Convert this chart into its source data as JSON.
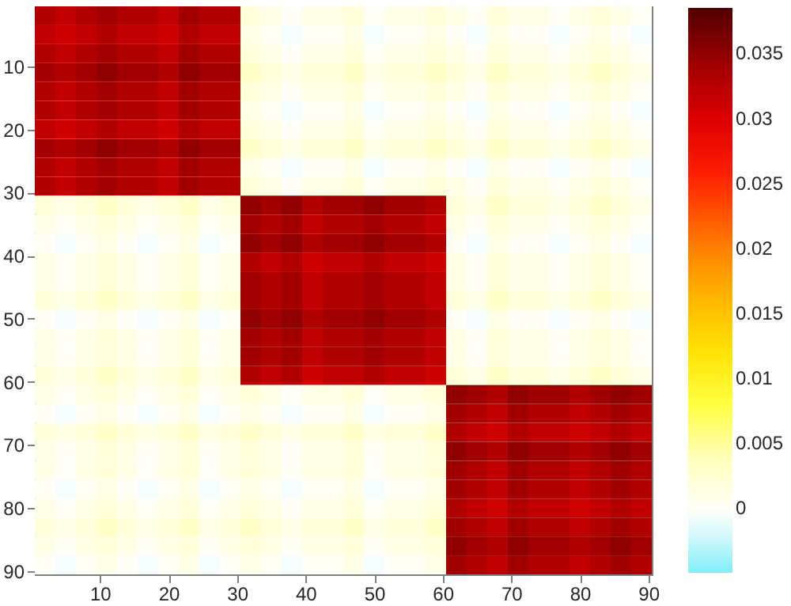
{
  "chart_data": {
    "type": "heatmap",
    "x": [
      2,
      5,
      8,
      11,
      14,
      17,
      20,
      23,
      26,
      29,
      32,
      35,
      38,
      41,
      44,
      47,
      50,
      53,
      56,
      59,
      62,
      65,
      68,
      71,
      74,
      77,
      80,
      83,
      86,
      89
    ],
    "xlim": [
      0.5,
      90.5
    ],
    "ylim": [
      90.5,
      0.5
    ],
    "xticks": [
      10,
      20,
      30,
      40,
      50,
      60,
      70,
      80,
      90
    ],
    "yticks": [
      10,
      20,
      30,
      40,
      50,
      60,
      70,
      80,
      90
    ],
    "clim": [
      -0.005,
      0.0385
    ],
    "cticks": [
      0,
      0.005,
      0.01,
      0.015,
      0.02,
      0.025,
      0.03,
      0.035
    ],
    "colors": [
      "#80eef8",
      "#ffffff",
      "#ffffc0",
      "#ffff40",
      "#ffe000",
      "#ffb000",
      "#ff7000",
      "#ff2000",
      "#e00000",
      "#a00000",
      "#500000"
    ],
    "cells": [
      [
        0.033,
        0.032,
        0.033,
        0.034,
        0.033,
        0.033,
        0.032,
        0.034,
        0.033,
        0.033,
        0.002,
        0.001,
        0,
        0.001,
        0.001,
        0.002,
        0,
        0.001,
        0.001,
        0.002,
        0.001,
        0,
        0.002,
        0.001,
        0.001,
        0,
        0.001,
        0.002,
        0.001,
        0
      ],
      [
        0.032,
        0.031,
        0.032,
        0.033,
        0.032,
        0.032,
        0.031,
        0.033,
        0.032,
        0.032,
        0.001,
        0,
        -0.001,
        0,
        0,
        0.001,
        -0.001,
        0,
        0,
        0.001,
        0,
        -0.001,
        0.001,
        0,
        0,
        -0.001,
        0,
        0.001,
        0,
        -0.001
      ],
      [
        0.033,
        0.032,
        0.033,
        0.034,
        0.033,
        0.033,
        0.032,
        0.034,
        0.033,
        0.033,
        0.002,
        0.001,
        0,
        0.001,
        0.001,
        0.002,
        0,
        0.001,
        0.001,
        0.002,
        0.001,
        0,
        0.002,
        0.001,
        0.001,
        0,
        0.001,
        0.002,
        0.001,
        0
      ],
      [
        0.034,
        0.033,
        0.034,
        0.035,
        0.034,
        0.034,
        0.033,
        0.035,
        0.034,
        0.034,
        0.003,
        0.002,
        0.001,
        0.002,
        0.002,
        0.003,
        0.001,
        0.002,
        0.002,
        0.003,
        0.002,
        0.001,
        0.003,
        0.002,
        0.002,
        0.001,
        0.002,
        0.003,
        0.002,
        0.001
      ],
      [
        0.033,
        0.032,
        0.033,
        0.034,
        0.033,
        0.033,
        0.032,
        0.034,
        0.033,
        0.033,
        0.002,
        0.001,
        0,
        0.001,
        0.001,
        0.002,
        0,
        0.001,
        0.001,
        0.002,
        0.001,
        0,
        0.002,
        0.001,
        0.001,
        0,
        0.001,
        0.002,
        0.001,
        0
      ],
      [
        0.033,
        0.032,
        0.033,
        0.034,
        0.033,
        0.033,
        0.032,
        0.034,
        0.033,
        0.033,
        0.001,
        0,
        -0.001,
        0,
        0,
        0.001,
        -0.001,
        0,
        0,
        0.001,
        0,
        -0.001,
        0.001,
        0,
        0,
        -0.001,
        0,
        0.001,
        0,
        -0.001
      ],
      [
        0.032,
        0.031,
        0.032,
        0.033,
        0.032,
        0.032,
        0.031,
        0.033,
        0.032,
        0.032,
        0.002,
        0.001,
        0,
        0.001,
        0.001,
        0.002,
        0,
        0.001,
        0.001,
        0.002,
        0.001,
        0,
        0.002,
        0.001,
        0.001,
        0,
        0.001,
        0.002,
        0.001,
        0
      ],
      [
        0.034,
        0.033,
        0.034,
        0.035,
        0.034,
        0.034,
        0.033,
        0.035,
        0.034,
        0.034,
        0.003,
        0.002,
        0.001,
        0.002,
        0.002,
        0.003,
        0.001,
        0.002,
        0.002,
        0.003,
        0.002,
        0.001,
        0.003,
        0.002,
        0.002,
        0.001,
        0.002,
        0.003,
        0.002,
        0.001
      ],
      [
        0.033,
        0.032,
        0.033,
        0.034,
        0.033,
        0.033,
        0.032,
        0.034,
        0.033,
        0.033,
        0.001,
        0,
        -0.001,
        0,
        0,
        0.001,
        -0.001,
        0,
        0,
        0.001,
        0,
        -0.001,
        0.001,
        0,
        0,
        -0.001,
        0,
        0.001,
        0,
        -0.001
      ],
      [
        0.033,
        0.032,
        0.033,
        0.034,
        0.033,
        0.033,
        0.032,
        0.034,
        0.033,
        0.033,
        0.002,
        0.001,
        0,
        0.001,
        0.001,
        0.002,
        0,
        0.001,
        0.001,
        0.002,
        0.001,
        0,
        0.002,
        0.001,
        0.001,
        0,
        0.001,
        0.002,
        0.001,
        0
      ],
      [
        0.002,
        0.001,
        0.002,
        0.003,
        0.002,
        0.001,
        0.002,
        0.003,
        0.001,
        0.002,
        0.035,
        0.034,
        0.035,
        0.033,
        0.034,
        0.034,
        0.035,
        0.034,
        0.034,
        0.033,
        0.002,
        0.001,
        0.003,
        0.002,
        0.002,
        0.001,
        0.002,
        0.003,
        0.002,
        0.001
      ],
      [
        0.001,
        0,
        0.001,
        0.002,
        0.001,
        0,
        0.001,
        0.002,
        0,
        0.001,
        0.034,
        0.033,
        0.034,
        0.032,
        0.033,
        0.033,
        0.034,
        0.033,
        0.033,
        0.032,
        0.001,
        0,
        0.002,
        0.001,
        0.001,
        0,
        0.001,
        0.002,
        0.001,
        0
      ],
      [
        0,
        -0.001,
        0,
        0.001,
        0,
        -0.001,
        0,
        0.001,
        -0.001,
        0,
        0.035,
        0.034,
        0.035,
        0.033,
        0.034,
        0.034,
        0.035,
        0.034,
        0.034,
        0.033,
        0,
        -0.001,
        0.001,
        0,
        0,
        -0.001,
        0,
        0.001,
        0,
        -0.001
      ],
      [
        0.001,
        0,
        0.001,
        0.002,
        0.001,
        0,
        0.001,
        0.002,
        0,
        0.001,
        0.033,
        0.032,
        0.033,
        0.031,
        0.032,
        0.032,
        0.033,
        0.032,
        0.032,
        0.031,
        0.001,
        0,
        0.002,
        0.001,
        0.001,
        0,
        0.001,
        0.002,
        0.001,
        0
      ],
      [
        0.001,
        0,
        0.001,
        0.002,
        0.001,
        0,
        0.001,
        0.002,
        0,
        0.001,
        0.034,
        0.033,
        0.034,
        0.032,
        0.033,
        0.033,
        0.034,
        0.033,
        0.033,
        0.032,
        0.001,
        0,
        0.002,
        0.001,
        0.001,
        0,
        0.001,
        0.002,
        0.001,
        0
      ],
      [
        0.002,
        0.001,
        0.002,
        0.003,
        0.002,
        0.001,
        0.002,
        0.003,
        0.001,
        0.002,
        0.034,
        0.033,
        0.034,
        0.032,
        0.033,
        0.033,
        0.034,
        0.033,
        0.033,
        0.032,
        0.002,
        0.001,
        0.003,
        0.002,
        0.002,
        0.001,
        0.002,
        0.003,
        0.002,
        0.001
      ],
      [
        0,
        -0.001,
        0,
        0.001,
        0,
        -0.001,
        0,
        0.001,
        -0.001,
        0,
        0.035,
        0.034,
        0.035,
        0.033,
        0.034,
        0.034,
        0.035,
        0.034,
        0.034,
        0.033,
        0,
        -0.001,
        0.001,
        0,
        0,
        -0.001,
        0,
        0.001,
        0,
        -0.001
      ],
      [
        0.001,
        0,
        0.001,
        0.002,
        0.001,
        0,
        0.001,
        0.002,
        0,
        0.001,
        0.034,
        0.033,
        0.034,
        0.032,
        0.033,
        0.033,
        0.034,
        0.033,
        0.033,
        0.032,
        0.001,
        0,
        0.002,
        0.001,
        0.001,
        0,
        0.001,
        0.002,
        0.001,
        0
      ],
      [
        0.001,
        0,
        0.001,
        0.002,
        0.001,
        0,
        0.001,
        0.002,
        0,
        0.001,
        0.034,
        0.033,
        0.034,
        0.032,
        0.033,
        0.033,
        0.034,
        0.033,
        0.033,
        0.032,
        0.001,
        0,
        0.002,
        0.001,
        0.001,
        0,
        0.001,
        0.002,
        0.001,
        0
      ],
      [
        0.002,
        0.001,
        0.002,
        0.003,
        0.002,
        0.001,
        0.002,
        0.003,
        0.001,
        0.002,
        0.033,
        0.032,
        0.033,
        0.031,
        0.032,
        0.032,
        0.033,
        0.032,
        0.032,
        0.031,
        0.002,
        0.001,
        0.003,
        0.002,
        0.002,
        0.001,
        0.002,
        0.003,
        0.002,
        0.001
      ],
      [
        0.001,
        0,
        0.001,
        0.002,
        0.001,
        0,
        0.001,
        0.002,
        0,
        0.001,
        0.002,
        0.001,
        0,
        0.001,
        0.001,
        0.002,
        0,
        0.001,
        0.001,
        0.002,
        0.035,
        0.034,
        0.033,
        0.035,
        0.034,
        0.034,
        0.033,
        0.034,
        0.035,
        0.034
      ],
      [
        0,
        -0.001,
        0,
        0.001,
        0,
        -0.001,
        0,
        0.001,
        -0.001,
        0,
        0.001,
        0,
        -0.001,
        0,
        0,
        0.001,
        -0.001,
        0,
        0,
        0.001,
        0.034,
        0.033,
        0.032,
        0.034,
        0.033,
        0.033,
        0.032,
        0.033,
        0.034,
        0.033
      ],
      [
        0.002,
        0.001,
        0.002,
        0.003,
        0.002,
        0.001,
        0.002,
        0.003,
        0.001,
        0.002,
        0.003,
        0.002,
        0.001,
        0.002,
        0.002,
        0.003,
        0.001,
        0.002,
        0.002,
        0.003,
        0.033,
        0.032,
        0.031,
        0.033,
        0.032,
        0.032,
        0.031,
        0.032,
        0.033,
        0.032
      ],
      [
        0.001,
        0,
        0.001,
        0.002,
        0.001,
        0,
        0.001,
        0.002,
        0,
        0.001,
        0.002,
        0.001,
        0,
        0.001,
        0.001,
        0.002,
        0,
        0.001,
        0.001,
        0.002,
        0.035,
        0.034,
        0.033,
        0.035,
        0.034,
        0.034,
        0.033,
        0.034,
        0.035,
        0.034
      ],
      [
        0.001,
        0,
        0.001,
        0.002,
        0.001,
        0,
        0.001,
        0.002,
        0,
        0.001,
        0.002,
        0.001,
        0,
        0.001,
        0.001,
        0.002,
        0,
        0.001,
        0.001,
        0.002,
        0.034,
        0.033,
        0.032,
        0.034,
        0.033,
        0.033,
        0.032,
        0.033,
        0.034,
        0.033
      ],
      [
        0,
        -0.001,
        0,
        0.001,
        0,
        -0.001,
        0,
        0.001,
        -0.001,
        0,
        0.001,
        0,
        -0.001,
        0,
        0,
        0.001,
        -0.001,
        0,
        0,
        0.001,
        0.034,
        0.033,
        0.032,
        0.034,
        0.033,
        0.033,
        0.032,
        0.033,
        0.034,
        0.033
      ],
      [
        0.001,
        0,
        0.001,
        0.002,
        0.001,
        0,
        0.001,
        0.002,
        0,
        0.001,
        0.002,
        0.001,
        0,
        0.001,
        0.001,
        0.002,
        0,
        0.001,
        0.001,
        0.002,
        0.033,
        0.032,
        0.031,
        0.033,
        0.032,
        0.032,
        0.031,
        0.032,
        0.033,
        0.032
      ],
      [
        0.002,
        0.001,
        0.002,
        0.003,
        0.002,
        0.001,
        0.002,
        0.003,
        0.001,
        0.002,
        0.003,
        0.002,
        0.001,
        0.002,
        0.002,
        0.003,
        0.001,
        0.002,
        0.002,
        0.003,
        0.034,
        0.033,
        0.032,
        0.034,
        0.033,
        0.033,
        0.032,
        0.033,
        0.034,
        0.033
      ],
      [
        0.001,
        0,
        0.001,
        0.002,
        0.001,
        0,
        0.001,
        0.002,
        0,
        0.001,
        0.002,
        0.001,
        0,
        0.001,
        0.001,
        0.002,
        0,
        0.001,
        0.001,
        0.002,
        0.035,
        0.034,
        0.033,
        0.035,
        0.034,
        0.034,
        0.033,
        0.034,
        0.035,
        0.034
      ],
      [
        0,
        -0.001,
        0,
        0.001,
        0,
        -0.001,
        0,
        0.001,
        -0.001,
        0,
        0.001,
        0,
        -0.001,
        0,
        0,
        0.001,
        -0.001,
        0,
        0,
        0.001,
        0.034,
        0.033,
        0.032,
        0.034,
        0.033,
        0.033,
        0.032,
        0.033,
        0.034,
        0.033
      ]
    ]
  }
}
